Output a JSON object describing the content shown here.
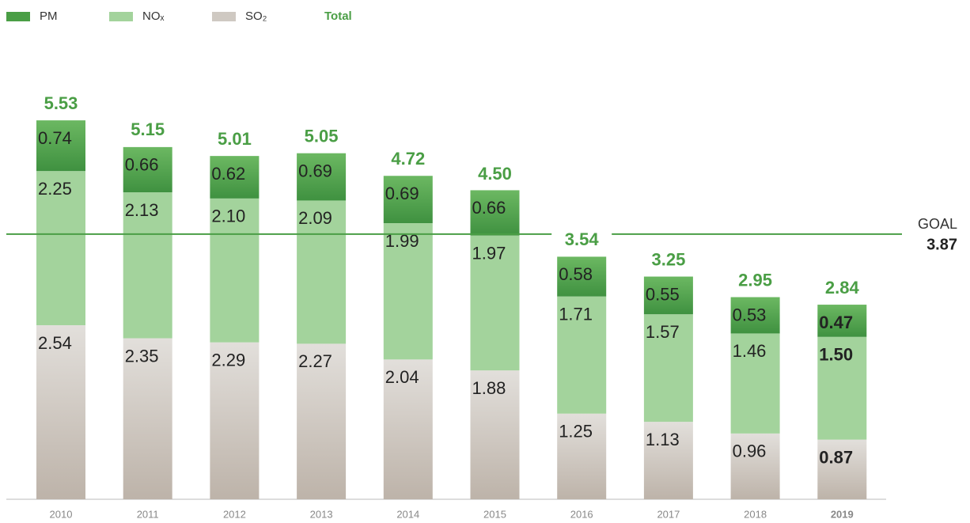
{
  "chart_data": {
    "type": "stacked-bar",
    "categories": [
      "2010",
      "2011",
      "2012",
      "2013",
      "2014",
      "2015",
      "2016",
      "2017",
      "2018",
      "2019"
    ],
    "series": [
      {
        "name": "PM",
        "color": "#4a9e45",
        "values": [
          0.74,
          0.66,
          0.62,
          0.69,
          0.69,
          0.66,
          0.58,
          0.55,
          0.53,
          0.47
        ],
        "value_labels": [
          "0.74",
          "0.66",
          "0.62",
          "0.69",
          "0.69",
          "0.66",
          "0.58",
          "0.55",
          "0.53",
          "0.47"
        ]
      },
      {
        "name": "NOₓ",
        "color": "#a3d39c",
        "values": [
          2.25,
          2.13,
          2.1,
          2.09,
          1.99,
          1.97,
          1.71,
          1.57,
          1.46,
          1.5
        ],
        "value_labels": [
          "2.25",
          "2.13",
          "2.10",
          "2.09",
          "1.99",
          "1.97",
          "1.71",
          "1.57",
          "1.46",
          "1.50"
        ]
      },
      {
        "name": "SO₂",
        "color": "#cfc9c2",
        "values": [
          2.54,
          2.35,
          2.29,
          2.27,
          2.04,
          1.88,
          1.25,
          1.13,
          0.96,
          0.87
        ],
        "value_labels": [
          "2.54",
          "2.35",
          "2.29",
          "2.27",
          "2.04",
          "1.88",
          "1.25",
          "1.13",
          "0.96",
          "0.87"
        ]
      }
    ],
    "totals": {
      "name": "Total",
      "color": "#4a9e45",
      "values": [
        5.53,
        5.15,
        5.01,
        5.05,
        4.72,
        4.5,
        3.54,
        3.25,
        2.95,
        2.84
      ],
      "value_labels": [
        "5.53",
        "5.15",
        "5.01",
        "5.05",
        "4.72",
        "4.50",
        "3.54",
        "3.25",
        "2.95",
        "2.84"
      ]
    },
    "goal": {
      "label": "GOAL",
      "value": 3.87,
      "value_label": "3.87",
      "color": "#4a9e45"
    },
    "highlight_category": "2019",
    "ylim": [
      0,
      6
    ]
  }
}
